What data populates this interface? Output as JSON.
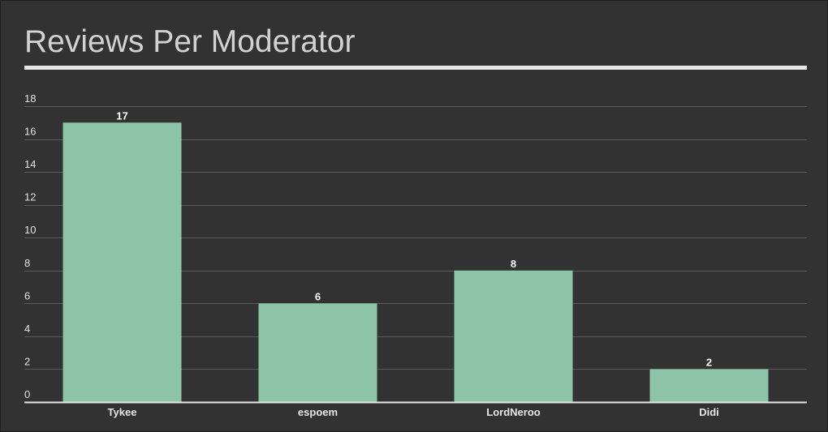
{
  "title": "Reviews Per Moderator",
  "colors": {
    "background": "#323232",
    "bar": "#8dc3a7",
    "grid": "#5a5a5a",
    "axis": "#e6e6e6",
    "text": "#e6e6e6",
    "title": "#d2d2d2"
  },
  "chart_data": {
    "type": "bar",
    "title": "Reviews Per Moderator",
    "categories": [
      "Tykee",
      "espoem",
      "LordNeroo",
      "Didi"
    ],
    "values": [
      17,
      6,
      8,
      2
    ],
    "xlabel": "",
    "ylabel": "",
    "ylim": [
      0,
      18
    ],
    "yticks": [
      0,
      2,
      4,
      6,
      8,
      10,
      12,
      14,
      16,
      18
    ],
    "grid": true,
    "legend": "none",
    "data_labels": true
  }
}
